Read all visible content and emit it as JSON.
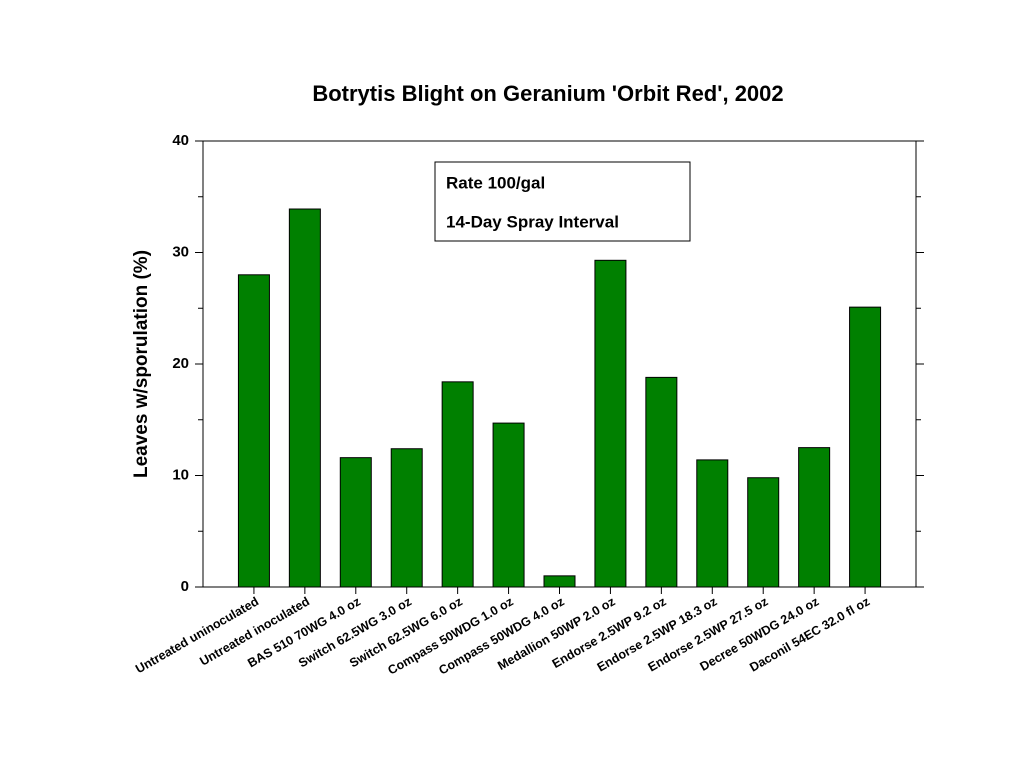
{
  "chart_data": {
    "type": "bar",
    "title": "Botrytis Blight on Geranium 'Orbit Red', 2002",
    "y_label": "Leaves w/sporulation (%)",
    "annotations": [
      "Rate 100/gal",
      "14-Day Spray Interval"
    ],
    "categories": [
      "Untreated uninoculated",
      "Untreated inoculated",
      "BAS 510 70WG 4.0 oz",
      "Switch 62.5WG 3.0 oz",
      "Switch 62.5WG 6.0 oz",
      "Compass 50WDG 1.0 oz",
      "Compass 50WDG 4.0 oz",
      "Medallion 50WP 2.0 oz",
      "Endorse 2.5WP 9.2 oz",
      "Endorse 2.5WP 18.3 oz",
      "Endorse 2.5WP 27.5 oz",
      "Decree 50WDG 24.0 oz",
      "Daconil 54EC 32.0 fl oz"
    ],
    "values": [
      28.0,
      33.9,
      11.6,
      12.4,
      18.4,
      14.7,
      1.0,
      29.3,
      18.8,
      11.4,
      9.8,
      12.5,
      25.1
    ],
    "color": "#008000",
    "ylim": [
      0,
      40
    ],
    "yticks": [
      0,
      10,
      20,
      30,
      40
    ],
    "minor_yticks": [
      5,
      15,
      25,
      35
    ]
  }
}
